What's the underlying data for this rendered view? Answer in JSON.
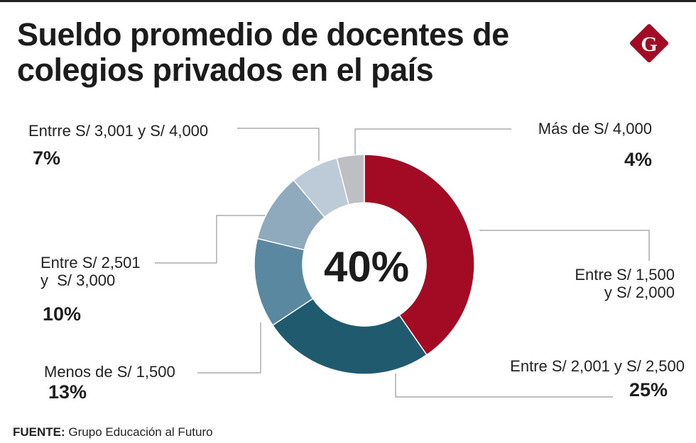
{
  "header": {
    "title_line1": "Sueldo promedio de docentes de",
    "title_line2": "colegios privados en el país",
    "logo_letter": "G",
    "logo_icon": "brand-diamond-logo-icon"
  },
  "colors": {
    "brand": "#a30a24",
    "s1": "#a30a24",
    "s2": "#1f5a6e",
    "s3": "#5a88a0",
    "s4": "#90aabd",
    "s5": "#bccbd7",
    "s6": "#bdbfc3",
    "leader": "#9a9a9a"
  },
  "chart_data": {
    "type": "pie",
    "subtype": "donut",
    "title": "Sueldo promedio de docentes de colegios privados en el país",
    "center_label": "40%",
    "start": "top",
    "direction": "clockwise",
    "slices": [
      {
        "label": "Entre S/ 1,500 y S/ 2,000",
        "label_line1": "Entre S/ 1,500",
        "label_line2": "y S/ 2,000",
        "value": 40,
        "display": "40%"
      },
      {
        "label": "Entre S/ 2,001 y S/ 2,500",
        "value": 25,
        "display": "25%"
      },
      {
        "label": "Menos de S/ 1,500",
        "value": 13,
        "display": "13%"
      },
      {
        "label": "Entre S/ 2,501 y S/ 3,000",
        "label_line1": "Entre S/ 2,501",
        "label_line2": "y  S/ 3,000",
        "value": 10,
        "display": "10%"
      },
      {
        "label": "Entrre S/ 3,001 y S/ 4,000",
        "value": 7,
        "display": "7%"
      },
      {
        "label": "Más de S/ 4,000",
        "value": 4,
        "display": "4%"
      }
    ]
  },
  "footer": {
    "source_label": "FUENTE:",
    "source_text": " Grupo Educación al Futuro"
  }
}
